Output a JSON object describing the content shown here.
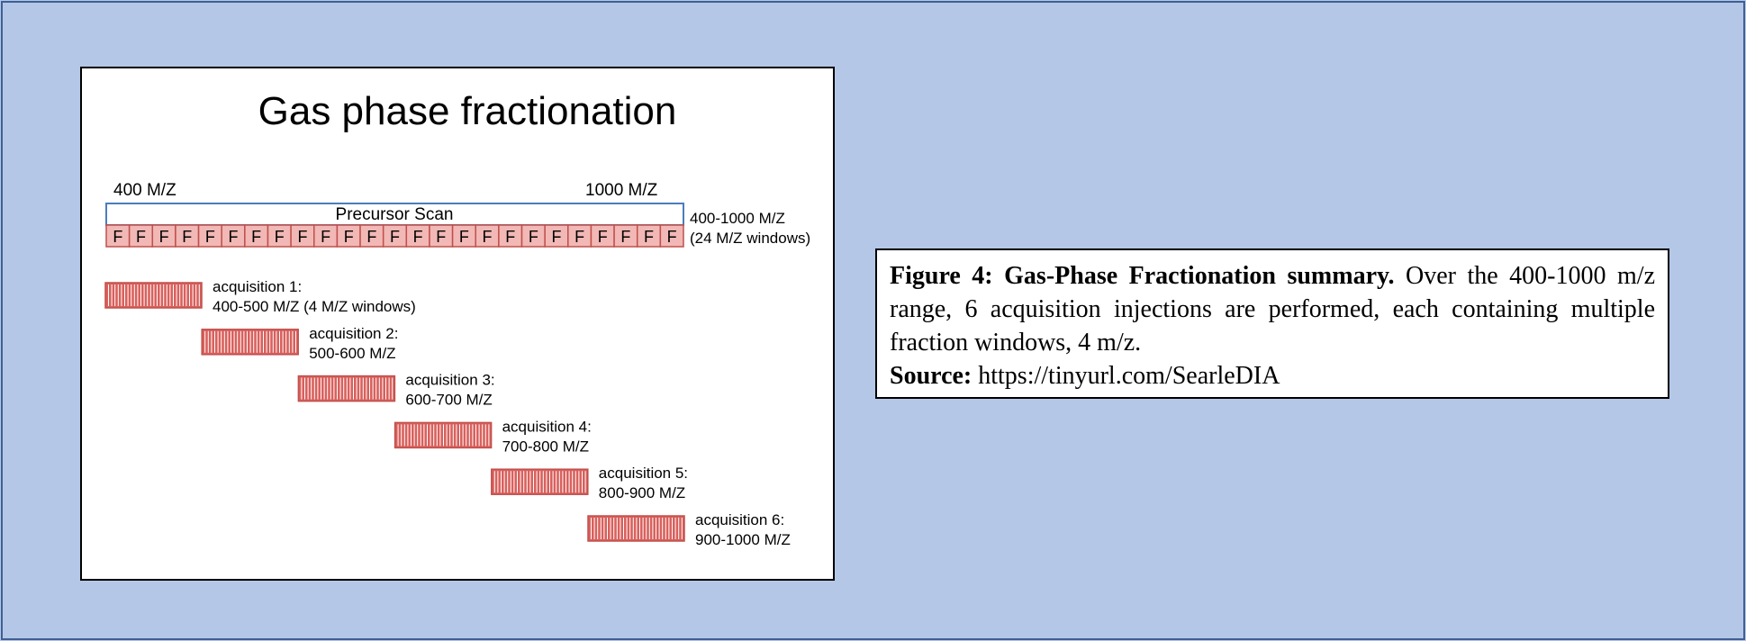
{
  "diagram": {
    "title": "Gas phase fractionation",
    "range_start_label": "400 M/Z",
    "range_end_label": "1000 M/Z",
    "precursor_label": "Precursor Scan",
    "range_note_line1": "400-1000 M/Z",
    "range_note_line2": "(24 M/Z windows)",
    "fraction_letter": "F",
    "fraction_count": 25,
    "acquisitions": [
      {
        "line1": "acquisition 1:",
        "line2": "400-500 M/Z (4 M/Z windows)"
      },
      {
        "line1": "acquisition 2:",
        "line2": "500-600 M/Z"
      },
      {
        "line1": "acquisition 3:",
        "line2": "600-700 M/Z"
      },
      {
        "line1": "acquisition 4:",
        "line2": "700-800 M/Z"
      },
      {
        "line1": "acquisition 5:",
        "line2": "800-900 M/Z"
      },
      {
        "line1": "acquisition 6:",
        "line2": "900-1000 M/Z"
      }
    ],
    "colors": {
      "title": "#4a7ebb",
      "precursor_border": "#4a7ebb",
      "fraction_fill": "#f2b8b5",
      "fraction_border": "#c0504d",
      "acq_fill": "#d9605c",
      "acq_stripe": "#ffffff"
    }
  },
  "caption": {
    "heading": "Figure 4: Gas-Phase Fractionation summary.",
    "body": "Over the 400-1000 m/z range, 6 acquisition injections are performed, each containing multiple fraction windows, 4 m/z.",
    "source_label": "Source:",
    "source_url": "https://tinyurl.com/SearleDIA"
  }
}
